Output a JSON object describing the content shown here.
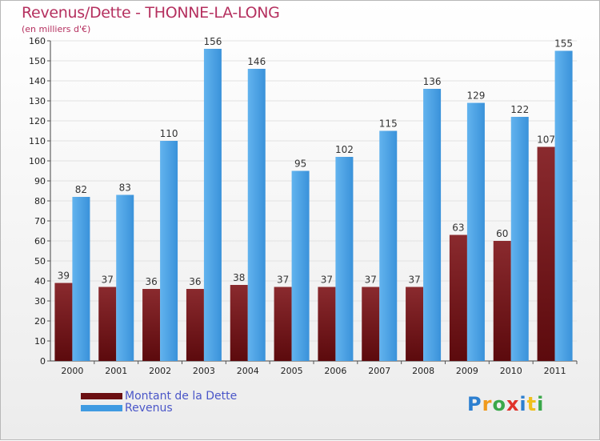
{
  "title": "Revenus/Dette - THONNE-LA-LONG",
  "subtitle": "(en milliers d'€)",
  "logo": [
    "P",
    "r",
    "o",
    "x",
    "i",
    "t",
    "i"
  ],
  "legend": [
    {
      "label": "Montant de la Dette"
    },
    {
      "label": "Revenus"
    }
  ],
  "colors": {
    "debt": "#7a1418",
    "revenue": "#3f9be2",
    "title": "#b5305f",
    "legend_text": "#4a56c8"
  },
  "chart_data": {
    "type": "bar",
    "title": "Revenus/Dette - THONNE-LA-LONG",
    "ylabel": "(en milliers d'€)",
    "xlabel": "",
    "ylim": [
      0,
      160
    ],
    "yticks": [
      0,
      10,
      20,
      30,
      40,
      50,
      60,
      70,
      80,
      90,
      100,
      110,
      120,
      130,
      140,
      150,
      160
    ],
    "categories": [
      "2000",
      "2001",
      "2002",
      "2003",
      "2004",
      "2005",
      "2006",
      "2007",
      "2008",
      "2009",
      "2010",
      "2011"
    ],
    "series": [
      {
        "name": "Montant de la Dette",
        "values": [
          39,
          37,
          36,
          36,
          38,
          37,
          37,
          37,
          37,
          63,
          60,
          107
        ]
      },
      {
        "name": "Revenus",
        "values": [
          82,
          83,
          110,
          156,
          146,
          95,
          102,
          115,
          136,
          129,
          122,
          155
        ]
      }
    ]
  }
}
